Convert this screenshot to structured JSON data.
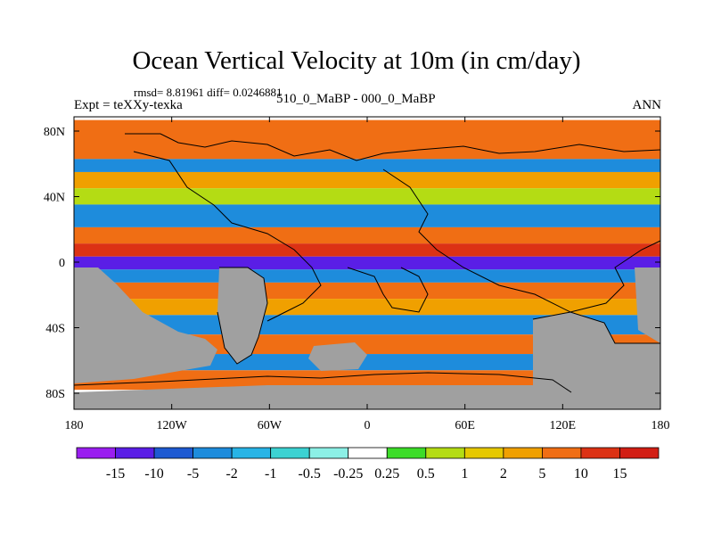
{
  "chart_data": {
    "type": "heatmap",
    "title": "Ocean Vertical Velocity at 10m (in cm/day)",
    "stats_line": "rmsd= 8.81961 diff= 0.0246881",
    "experiment_label": "Expt = teXXy-texka",
    "subtitle": "510_0_MaBP - 000_0_MaBP",
    "season": "ANN",
    "x_ticks": [
      "180",
      "120W",
      "60W",
      "0",
      "60E",
      "120E",
      "180"
    ],
    "y_ticks": [
      "80N",
      "40N",
      "0",
      "40S",
      "80S"
    ],
    "xlim": [
      -180,
      180
    ],
    "ylim": [
      -90,
      90
    ],
    "colorbar_labels": [
      "-15",
      "-10",
      "-5",
      "-2",
      "-1",
      "-0.5",
      "-0.25",
      "0.25",
      "0.5",
      "1",
      "2",
      "5",
      "10",
      "15"
    ],
    "colorbar_colors": [
      "#9a1ef0",
      "#5a1ee6",
      "#1e5ad2",
      "#1e8cdc",
      "#28b4e6",
      "#3cd2d2",
      "#8cf0e6",
      "#ffffff",
      "#3cdc28",
      "#b4dc14",
      "#e6c800",
      "#f0a000",
      "#f06e14",
      "#dc3214",
      "#d21e14"
    ],
    "land_color": "#a0a0a0",
    "bands": [
      {
        "lat": [
          64,
          88
        ],
        "value": 8
      },
      {
        "lat": [
          56,
          64
        ],
        "value": -4
      },
      {
        "lat": [
          46,
          56
        ],
        "value": 3
      },
      {
        "lat": [
          36,
          46
        ],
        "value": 0.8
      },
      {
        "lat": [
          22,
          36
        ],
        "value": -3
      },
      {
        "lat": [
          12,
          22
        ],
        "value": 6
      },
      {
        "lat": [
          4,
          12
        ],
        "value": 12
      },
      {
        "lat": [
          -4,
          4
        ],
        "value": -14
      },
      {
        "lat": [
          -12,
          -4
        ],
        "value": -3
      },
      {
        "lat": [
          -22,
          -12
        ],
        "value": 6
      },
      {
        "lat": [
          -32,
          -22
        ],
        "value": 2
      },
      {
        "lat": [
          -44,
          -32
        ],
        "value": -4
      },
      {
        "lat": [
          -56,
          -44
        ],
        "value": 7
      },
      {
        "lat": [
          -66,
          -56
        ],
        "value": -5
      },
      {
        "lat": [
          -78,
          -66
        ],
        "value": 6
      }
    ]
  }
}
